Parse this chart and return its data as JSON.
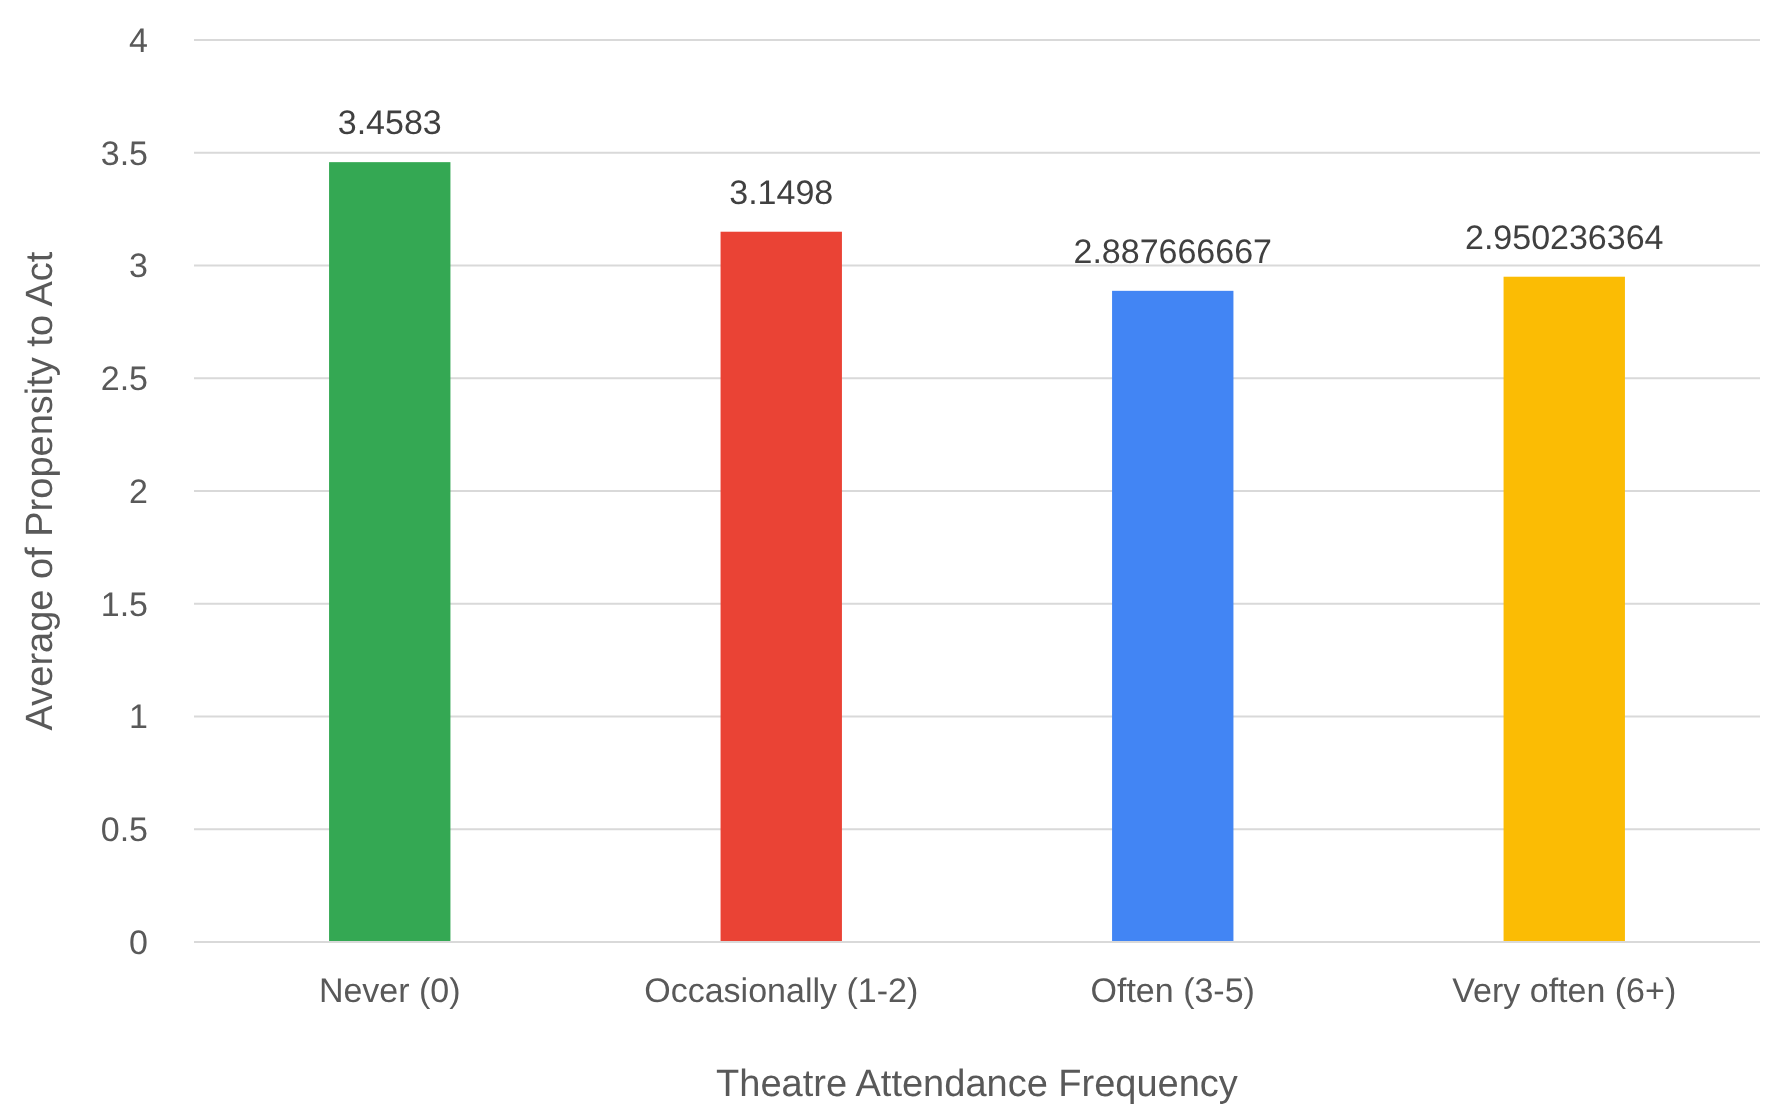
{
  "chart_data": {
    "type": "bar",
    "xlabel": "Theatre Attendance Frequency",
    "ylabel": "Average of Propensity to Act",
    "categories": [
      "Never (0)",
      "Occasionally (1-2)",
      "Often (3-5)",
      "Very often (6+)"
    ],
    "values": [
      3.4583,
      3.1498,
      2.887666667,
      2.950236364
    ],
    "colors": [
      "#34a853",
      "#ea4335",
      "#4285f4",
      "#fbbc04"
    ],
    "ylim": [
      0,
      4
    ],
    "yticks": [
      0,
      0.5,
      1,
      1.5,
      2,
      2.5,
      3,
      3.5,
      4
    ],
    "grid": "y",
    "data_labels": true
  }
}
